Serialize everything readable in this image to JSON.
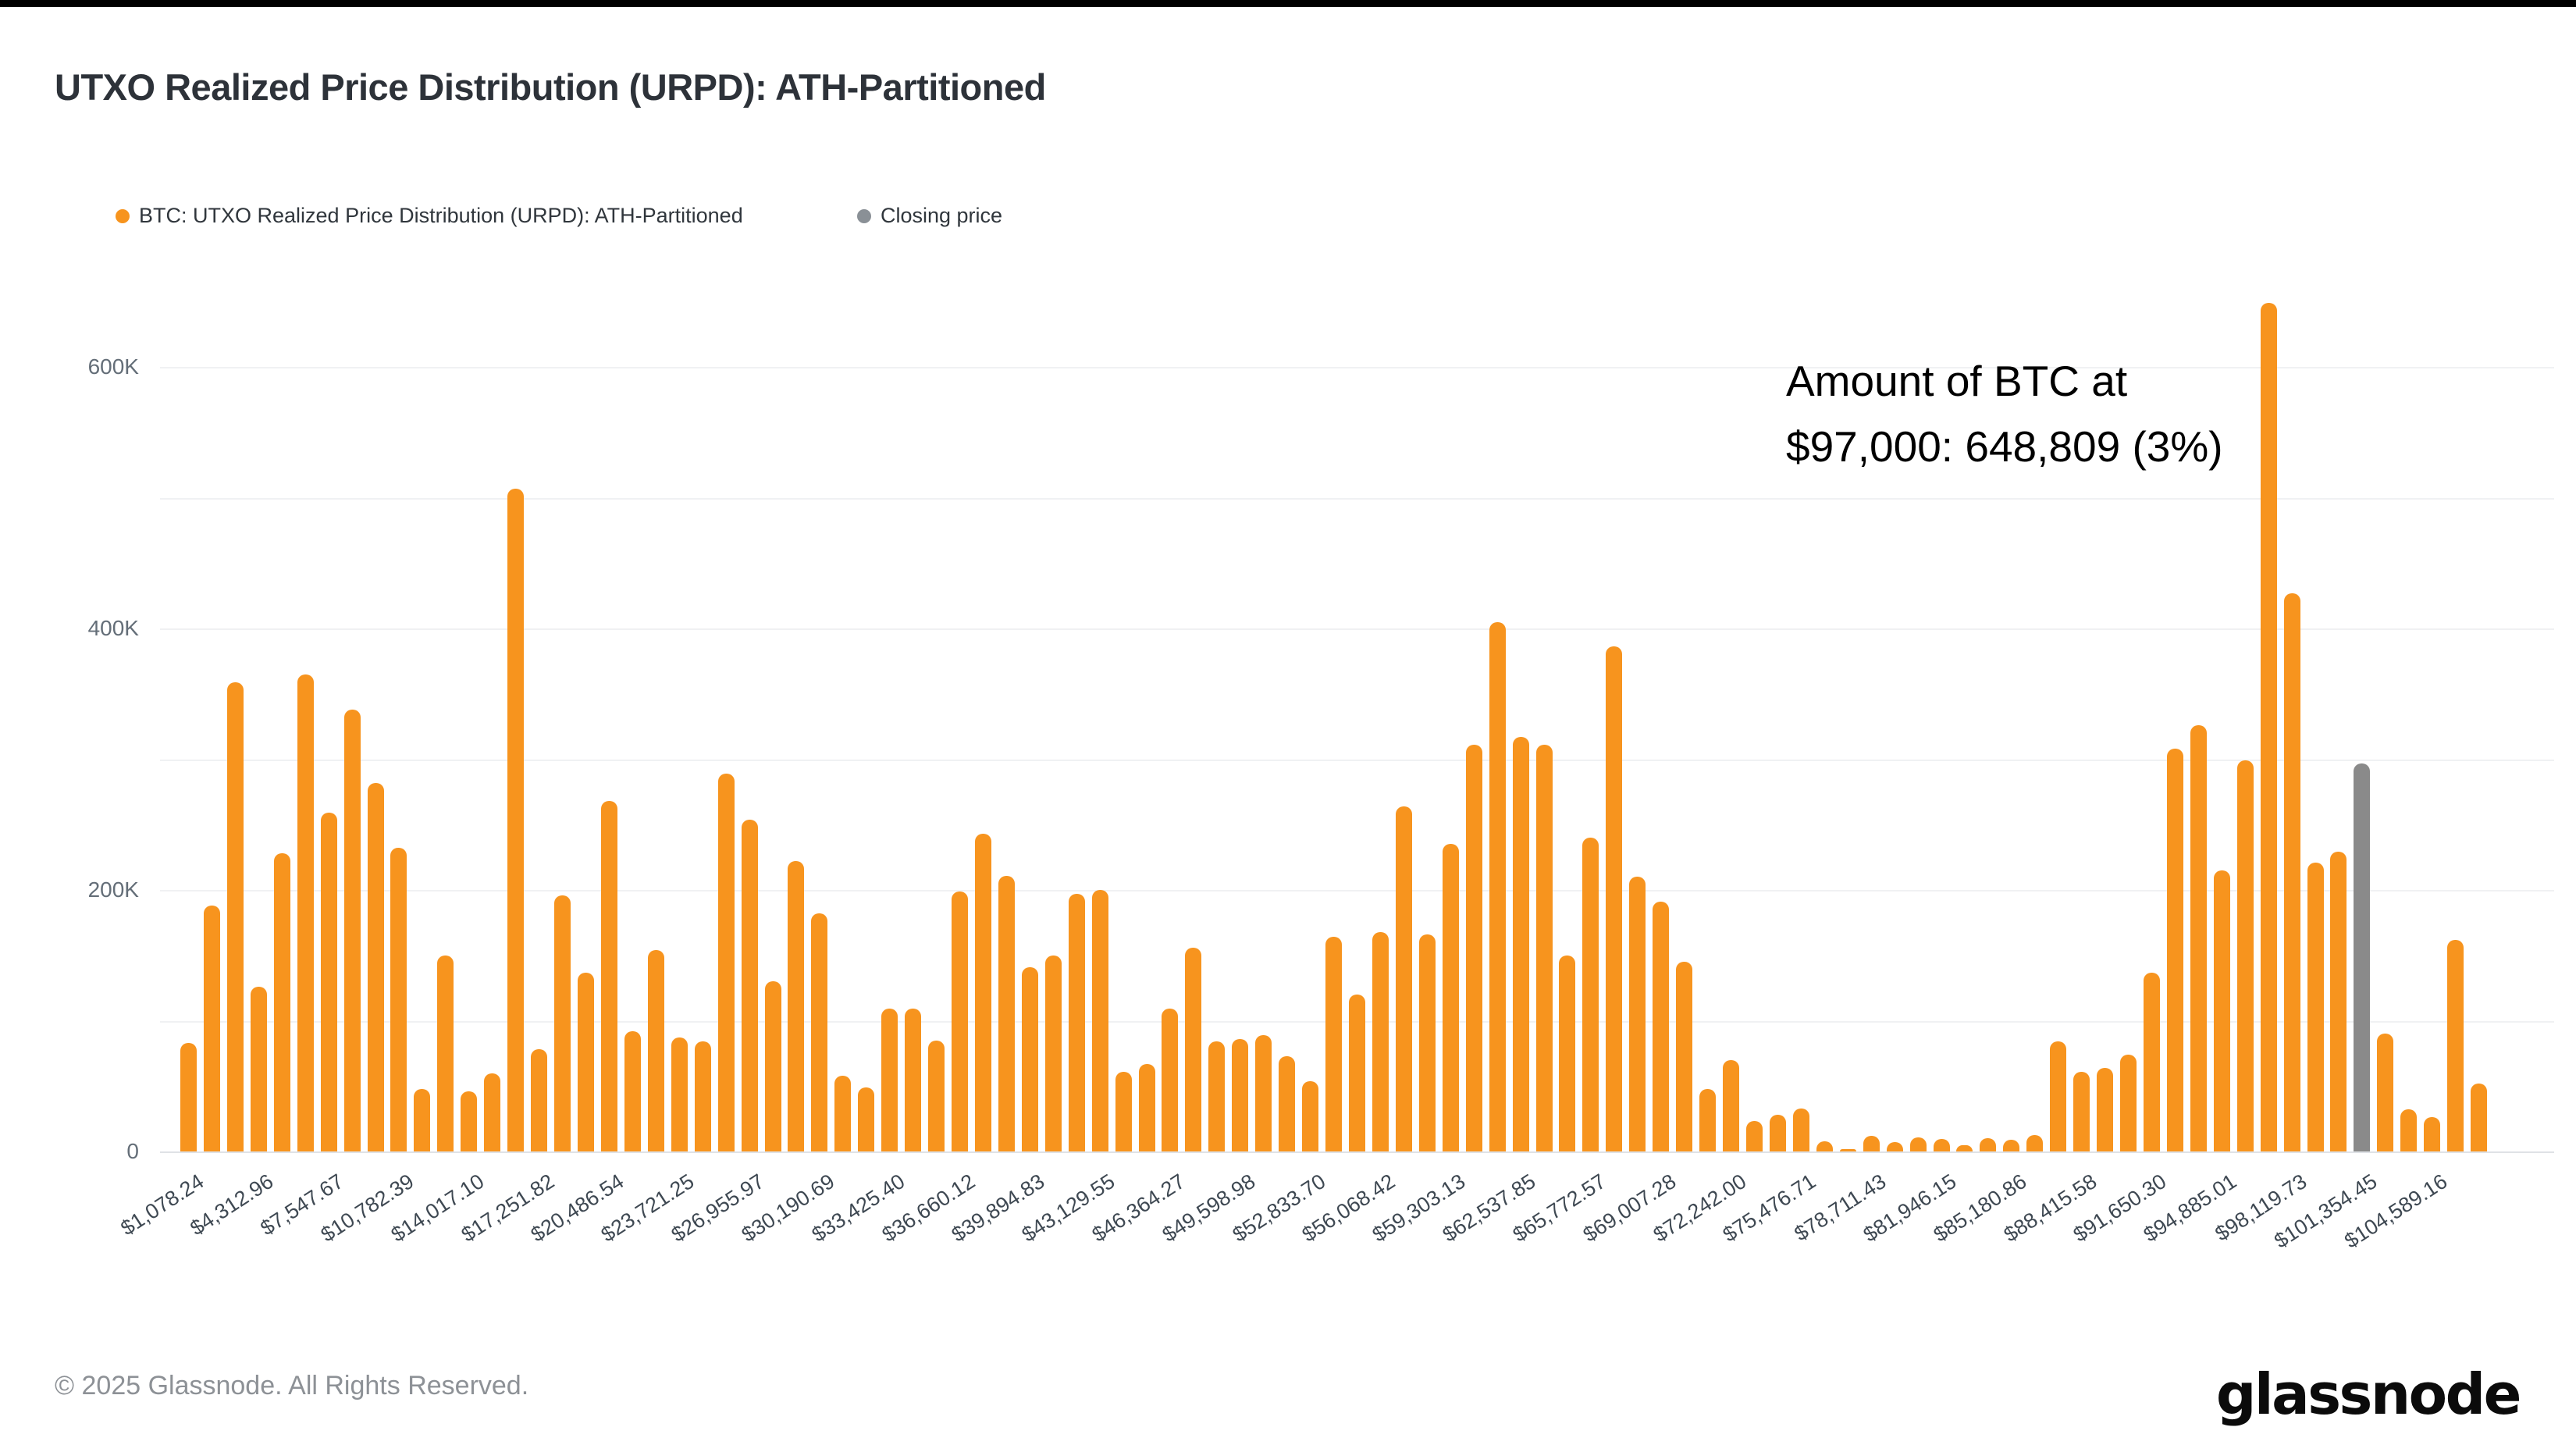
{
  "window": {
    "top_bar_color": "#000000"
  },
  "header": {
    "title": "UTXO Realized Price Distribution (URPD): ATH-Partitioned"
  },
  "legend": {
    "items": [
      {
        "label": "BTC: UTXO Realized Price Distribution (URPD): ATH-Partitioned",
        "color": "#f7941e"
      },
      {
        "label": "Closing price",
        "color": "#8a9096"
      }
    ]
  },
  "annotation": {
    "line1": "Amount of BTC at",
    "line2": "$97,000: 648,809 (3%)"
  },
  "footer": {
    "copyright": "© 2025 Glassnode. All Rights Reserved.",
    "brand": "glassnode"
  },
  "chart_data": {
    "type": "bar",
    "title": "UTXO Realized Price Distribution (URPD): ATH-Partitioned",
    "xlabel": "",
    "ylabel": "",
    "ylim": [
      0,
      650000
    ],
    "grid": "horizontal, 100K steps",
    "legend_position": "top-left",
    "bar_color": "#f7941e",
    "closing_bar_color": "#8a8a8a",
    "closing_index": 93,
    "tick_every_n_bars": 3,
    "bin_width_usd": 1078.24,
    "y_ticks": [
      {
        "value": 0,
        "label": "0"
      },
      {
        "value": 200000,
        "label": "200K"
      },
      {
        "value": 400000,
        "label": "400K"
      },
      {
        "value": 600000,
        "label": "600K"
      }
    ],
    "gridline_values": [
      100000,
      200000,
      300000,
      400000,
      500000,
      600000
    ],
    "x_tick_labels": [
      "$1,078.24",
      "$4,312.96",
      "$7,547.67",
      "$10,782.39",
      "$14,017.10",
      "$17,251.82",
      "$20,486.54",
      "$23,721.25",
      "$26,955.97",
      "$30,190.69",
      "$33,425.40",
      "$36,660.12",
      "$39,894.83",
      "$43,129.55",
      "$46,364.27",
      "$49,598.98",
      "$52,833.70",
      "$56,068.42",
      "$59,303.13",
      "$62,537.85",
      "$65,772.57",
      "$69,007.28",
      "$72,242.00",
      "$75,476.71",
      "$78,711.43",
      "$81,946.15",
      "$85,180.86",
      "$88,415.58",
      "$91,650.30",
      "$94,885.01",
      "$98,119.73",
      "$101,354.45",
      "$104,589.16"
    ],
    "values": [
      83000,
      188000,
      359000,
      126000,
      228000,
      365000,
      259000,
      338000,
      282000,
      232000,
      48000,
      150000,
      46000,
      60000,
      507000,
      78000,
      196000,
      137000,
      268000,
      92000,
      154000,
      87000,
      84000,
      289000,
      254000,
      130000,
      222000,
      182000,
      58000,
      49000,
      109000,
      109000,
      85000,
      199000,
      243000,
      211000,
      141000,
      150000,
      197000,
      200000,
      61000,
      67000,
      109000,
      156000,
      84000,
      86000,
      89000,
      73000,
      54000,
      164000,
      120000,
      168000,
      264000,
      166000,
      235000,
      311000,
      405000,
      317000,
      311000,
      150000,
      240000,
      386000,
      210000,
      191000,
      145000,
      48000,
      70000,
      23000,
      28000,
      33000,
      8000,
      1500,
      12000,
      7000,
      11000,
      9500,
      5000,
      10000,
      9000,
      12500,
      84000,
      61000,
      64000,
      74000,
      137000,
      308000,
      326000,
      215000,
      299000,
      648809,
      427000,
      221000,
      229000,
      297000,
      90000,
      32000,
      26000,
      162000,
      52000
    ],
    "highlighted_bar": {
      "index": 89,
      "btc": 648809,
      "price_usd_label": "$97,000",
      "percent": "3%"
    },
    "closing_price_bar": {
      "index": 93,
      "btc": 297000
    }
  }
}
